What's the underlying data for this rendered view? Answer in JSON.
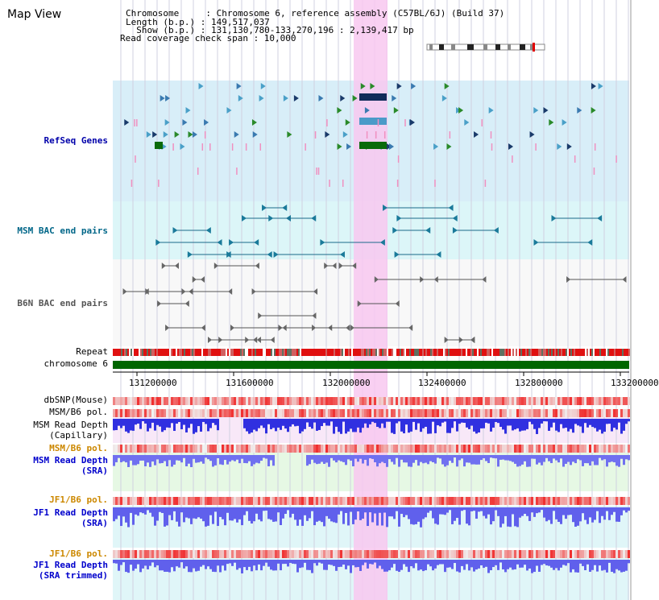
{
  "header": {
    "title": "Map View",
    "info_lines": [
      "Chromosome     : Chromosome 6, reference assembly (C57BL/6J) (Build 37)",
      "Length (b.p.) : 149,517,037",
      "  Show (b.p.) : 131,130,780-133,270,196 : 2,139,417 bp",
      "Read coverage check span : 10,000"
    ]
  },
  "tracks": {
    "refseq": "RefSeq Genes",
    "msm_bac": "MSM BAC end pairs",
    "b6n_bac": "B6N BAC end pairs",
    "repeat": "Repeat",
    "chromosome": "chromosome 6",
    "dbsnp": "dbSNP(Mouse)",
    "msm_b6_pol_1": "MSM/B6 pol.",
    "msm_read_cap_1": "MSM Read Depth",
    "msm_read_cap_2": "(Capillary)",
    "msm_b6_pol_2": "MSM/B6 pol.",
    "msm_read_sra_1": "MSM Read Depth",
    "msm_read_sra_2": "(SRA)",
    "jf1_b6_pol_1": "JF1/B6 pol.",
    "jf1_read_sra_1": "JF1 Read Depth",
    "jf1_read_sra_2": "(SRA)",
    "jf1_b6_pol_2": "JF1/B6 pol.",
    "jf1_read_trim_1": "JF1 Read Depth",
    "jf1_read_trim_2": "(SRA trimmed)"
  },
  "axis": {
    "ticks": [
      "131200000",
      "131600000",
      "132000000",
      "132400000",
      "132800000",
      "133200000"
    ]
  },
  "colors": {
    "refseq_label": "#0000aa",
    "msm_bac_label": "#006688",
    "b6n_bac_label": "#555555",
    "pol_label": "#cc8800",
    "depth_label": "#0000cc",
    "highlight": "#f8c8f0",
    "chromosome_bar": "#006600"
  }
}
